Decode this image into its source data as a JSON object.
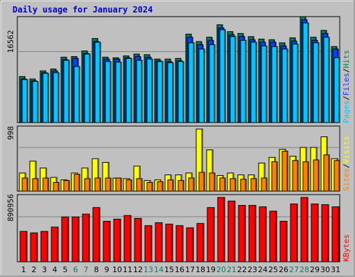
{
  "title": "Daily usage for January 2024",
  "colors": {
    "background": "#c0c0c0",
    "plot_bg": "#c0c0c0",
    "title": "#0000cc",
    "hits": "#00805c",
    "files": "#0040ff",
    "pages": "#00c8ff",
    "visits": "#ffff00",
    "sites": "#ff8000",
    "kbytes": "#ff0000",
    "weekend_label": "#00805c",
    "weekday_label": "#000000"
  },
  "chart_data": [
    {
      "type": "bar",
      "panel": "top",
      "ymax_label": "16562",
      "ylim": [
        0,
        16562
      ],
      "legend": {
        "pages": "Pages",
        "files": "Files",
        "hits": "Hits",
        "sep": "/"
      },
      "categories": [
        "1",
        "2",
        "3",
        "4",
        "5",
        "6",
        "7",
        "8",
        "9",
        "10",
        "11",
        "12",
        "13",
        "14",
        "15",
        "16",
        "17",
        "18",
        "19",
        "20",
        "21",
        "22",
        "23",
        "24",
        "25",
        "26",
        "27",
        "28",
        "29",
        "30",
        "31"
      ],
      "series": [
        {
          "name": "Hits",
          "values": [
            7400,
            7000,
            8300,
            8600,
            10500,
            10600,
            11500,
            13500,
            10500,
            10400,
            10700,
            11000,
            10900,
            10200,
            10200,
            10300,
            14200,
            13000,
            13700,
            15700,
            14600,
            14300,
            13800,
            13400,
            13300,
            12800,
            13600,
            17000,
            13700,
            14800,
            12200
          ]
        },
        {
          "name": "Files",
          "values": [
            7000,
            6700,
            8000,
            8300,
            10100,
            10300,
            11100,
            13000,
            10200,
            10200,
            10400,
            10600,
            10500,
            9900,
            9800,
            9900,
            13700,
            12500,
            13200,
            15200,
            14100,
            13800,
            13300,
            12900,
            12900,
            12300,
            13100,
            16500,
            13200,
            14300,
            11800
          ]
        },
        {
          "name": "Pages",
          "values": [
            6900,
            6600,
            7900,
            8000,
            10000,
            9000,
            11000,
            12900,
            9800,
            9700,
            10300,
            10000,
            10200,
            9800,
            9600,
            9800,
            12800,
            11800,
            12500,
            14900,
            13800,
            13200,
            12900,
            12300,
            12200,
            11800,
            12600,
            16000,
            12800,
            13700,
            10400
          ]
        }
      ],
      "weekend_days": [
        "6",
        "7",
        "13",
        "14",
        "20",
        "21",
        "27",
        "28"
      ]
    },
    {
      "type": "bar",
      "panel": "middle",
      "ymax_label": "998",
      "ylim": [
        0,
        998
      ],
      "legend": {
        "sites": "Sites",
        "visits": "Visits",
        "sep": "/"
      },
      "categories": [
        "1",
        "2",
        "3",
        "4",
        "5",
        "6",
        "7",
        "8",
        "9",
        "10",
        "11",
        "12",
        "13",
        "14",
        "15",
        "16",
        "17",
        "18",
        "19",
        "20",
        "21",
        "22",
        "23",
        "24",
        "25",
        "26",
        "27",
        "28",
        "29",
        "30",
        "31"
      ],
      "series": [
        {
          "name": "Visits",
          "values": [
            290,
            480,
            370,
            220,
            180,
            290,
            370,
            520,
            460,
            210,
            200,
            400,
            170,
            180,
            260,
            260,
            290,
            995,
            660,
            250,
            290,
            260,
            260,
            450,
            540,
            670,
            560,
            700,
            700,
            870,
            520
          ]
        },
        {
          "name": "Sites",
          "values": [
            210,
            200,
            210,
            140,
            170,
            270,
            200,
            210,
            210,
            210,
            180,
            200,
            140,
            150,
            180,
            170,
            210,
            300,
            290,
            210,
            200,
            190,
            200,
            210,
            470,
            640,
            490,
            470,
            500,
            580,
            490
          ]
        }
      ]
    },
    {
      "type": "bar",
      "panel": "bottom",
      "ymax_label": "890956",
      "ylim": [
        0,
        890956
      ],
      "legend": {
        "kbytes": "KBytes"
      },
      "categories": [
        "1",
        "2",
        "3",
        "4",
        "5",
        "6",
        "7",
        "8",
        "9",
        "10",
        "11",
        "12",
        "13",
        "14",
        "15",
        "16",
        "17",
        "18",
        "19",
        "20",
        "21",
        "22",
        "23",
        "24",
        "25",
        "26",
        "27",
        "28",
        "29",
        "30",
        "31"
      ],
      "series": [
        {
          "name": "KBytes",
          "values": [
            420000,
            400000,
            420000,
            480000,
            620000,
            620000,
            660000,
            750000,
            560000,
            590000,
            640000,
            600000,
            500000,
            540000,
            520000,
            500000,
            470000,
            530000,
            750000,
            890000,
            840000,
            780000,
            780000,
            760000,
            700000,
            560000,
            800000,
            890000,
            800000,
            790000,
            760000
          ]
        }
      ]
    }
  ]
}
